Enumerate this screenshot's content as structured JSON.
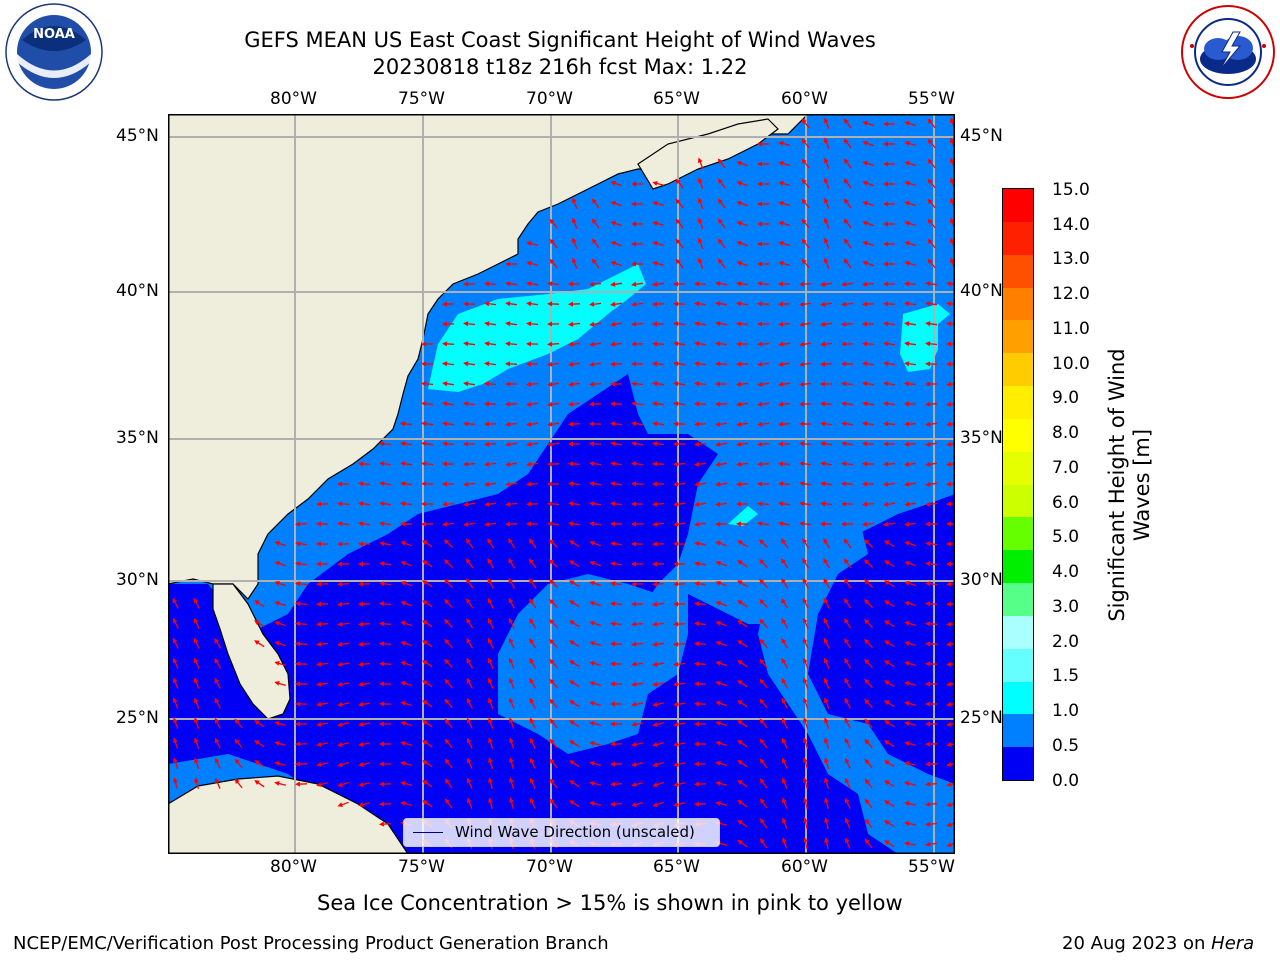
{
  "title": {
    "line1": "GEFS MEAN US East Coast Significant Height of Wind Waves",
    "line2": "20230818 t18z 216h fcst   Max: 1.22"
  },
  "logos": {
    "left": {
      "name": "noaa-logo",
      "text": "NOAA",
      "ring_text": "NATIONAL OCEANIC AND ATMOSPHERIC ADMINISTRATION · U.S. DEPARTMENT OF COMMERCE"
    },
    "right": {
      "name": "nws-logo",
      "ring_text": "NATIONAL WEATHER SERVICE"
    }
  },
  "map": {
    "lon_labels": [
      "80°W",
      "75°W",
      "70°W",
      "65°W",
      "60°W",
      "55°W"
    ],
    "lat_labels": [
      "45°N",
      "40°N",
      "35°N",
      "30°N",
      "25°N"
    ],
    "legend": "Wind Wave Direction (unscaled)",
    "colors": {
      "land": "#efeedc",
      "band_0_0_5": "#0000f5",
      "band_0_5_1_0": "#0080ff",
      "band_1_0_1_5": "#00ffff",
      "arrows": "#ff0000",
      "grid": "#b0b0b0"
    }
  },
  "colorbar": {
    "label_line1": "Significant Height of Wind",
    "label_line2": "Waves [m]",
    "ticks": [
      "15.0",
      "14.0",
      "13.0",
      "12.0",
      "11.0",
      "10.0",
      "9.0",
      "8.0",
      "7.0",
      "6.0",
      "5.0",
      "4.0",
      "3.0",
      "2.0",
      "1.5",
      "1.0",
      "0.5",
      "0.0"
    ],
    "colors_top_to_bottom": [
      "#ff0000",
      "#ff2000",
      "#ff5000",
      "#ff8000",
      "#ffa000",
      "#ffcc00",
      "#ffee00",
      "#ffff00",
      "#e6ff00",
      "#ccff00",
      "#66ff00",
      "#00ee00",
      "#55ff88",
      "#aaffff",
      "#66ffff",
      "#00ffff",
      "#0080ff",
      "#0000f5"
    ]
  },
  "notes": {
    "sea_ice": "Sea Ice Concentration > 15% is shown in pink to yellow"
  },
  "footer": {
    "left": "NCEP/EMC/Verification Post Processing Product Generation Branch",
    "date": "20 Aug 2023 on ",
    "machine": "Hera"
  }
}
